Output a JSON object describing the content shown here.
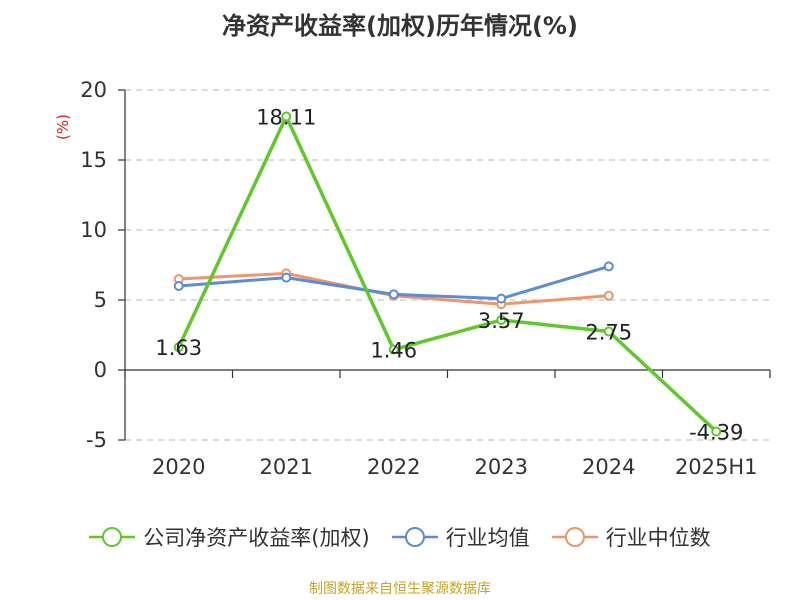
{
  "title": "净资产收益率(加权)历年情况(%)",
  "source": "制图数据来自恒生聚源数据库",
  "colors": {
    "roe": "#5fc82d",
    "industry_avg": "#5b8bd9",
    "industry_median": "#f2946b",
    "axis": "#333333",
    "grid": "#bbbbbb",
    "unit": "#e02020"
  },
  "chart_data": {
    "type": "line",
    "title": "净资产收益率(加权)历年情况(%)",
    "ylabel": "(%)",
    "categories": [
      "2020",
      "2021",
      "2022",
      "2023",
      "2024",
      "2025H1"
    ],
    "ylim": [
      -5,
      20
    ],
    "yticks": [
      20,
      15,
      10,
      5,
      0,
      -5
    ],
    "grid": true,
    "legend_position": "bottom",
    "series": [
      {
        "name": "公司净资产收益率(加权)",
        "color": "#5fc82d",
        "values": [
          1.63,
          18.11,
          1.46,
          3.57,
          2.75,
          -4.39
        ],
        "labels": [
          "1.63",
          "18.11",
          "1.46",
          "3.57",
          "2.75",
          "-4.39"
        ]
      },
      {
        "name": "行业均值",
        "color": "#5b8bd9",
        "values": [
          6.0,
          6.6,
          5.4,
          5.1,
          7.4,
          null
        ]
      },
      {
        "name": "行业中位数",
        "color": "#f2946b",
        "values": [
          6.5,
          6.9,
          5.3,
          4.7,
          5.3,
          null
        ]
      }
    ]
  }
}
